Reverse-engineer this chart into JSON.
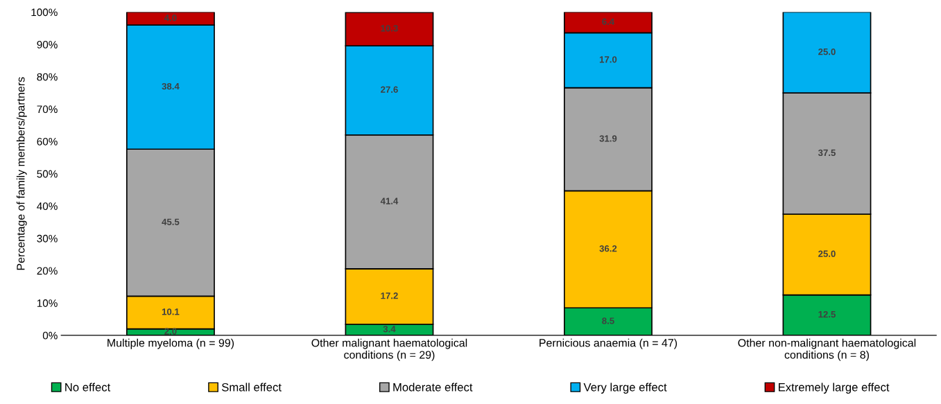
{
  "chart_data": {
    "type": "bar",
    "stacked": true,
    "ylabel": "Percentage of family members/partners",
    "categories": [
      "Multiple myeloma (n = 99)",
      "Other malignant haematological\nconditions (n = 29)",
      "Pernicious anaemia (n = 47)",
      "Other non-malignant haematological\nconditions (n = 8)"
    ],
    "series": [
      {
        "name": "No effect",
        "color": "#00b050",
        "values": [
          2.0,
          3.4,
          8.5,
          12.5
        ],
        "value_labels": [
          "2.0",
          "3.4",
          "8.5",
          "12.5"
        ]
      },
      {
        "name": "Small effect",
        "color": "#ffc000",
        "values": [
          10.1,
          17.2,
          36.2,
          25.0
        ],
        "value_labels": [
          "10.1",
          "17.2",
          "36.2",
          "25.0"
        ]
      },
      {
        "name": "Moderate effect",
        "color": "#a6a6a6",
        "values": [
          45.5,
          41.4,
          31.9,
          37.5
        ],
        "value_labels": [
          "45.5",
          "41.4",
          "31.9",
          "37.5"
        ]
      },
      {
        "name": "Very large effect",
        "color": "#00b0f0",
        "values": [
          38.4,
          27.6,
          17.0,
          25.0
        ],
        "value_labels": [
          "38.4",
          "27.6",
          "17.0",
          "25.0"
        ]
      },
      {
        "name": "Extremely large effect",
        "color": "#c00000",
        "values": [
          4.0,
          10.3,
          6.4,
          null
        ],
        "value_labels": [
          "4.0",
          "10.3",
          "6.4",
          null
        ]
      }
    ],
    "ylim": [
      0,
      100
    ],
    "yticks": [
      {
        "value": 0,
        "label": "0%"
      },
      {
        "value": 10,
        "label": "10%"
      },
      {
        "value": 20,
        "label": "20%"
      },
      {
        "value": 30,
        "label": "30%"
      },
      {
        "value": 40,
        "label": "40%"
      },
      {
        "value": 50,
        "label": "50%"
      },
      {
        "value": 60,
        "label": "60%"
      },
      {
        "value": 70,
        "label": "70%"
      },
      {
        "value": 80,
        "label": "80%"
      },
      {
        "value": 90,
        "label": "90%"
      },
      {
        "value": 100,
        "label": "100%"
      }
    ],
    "grid": false,
    "legend": "bottom"
  }
}
